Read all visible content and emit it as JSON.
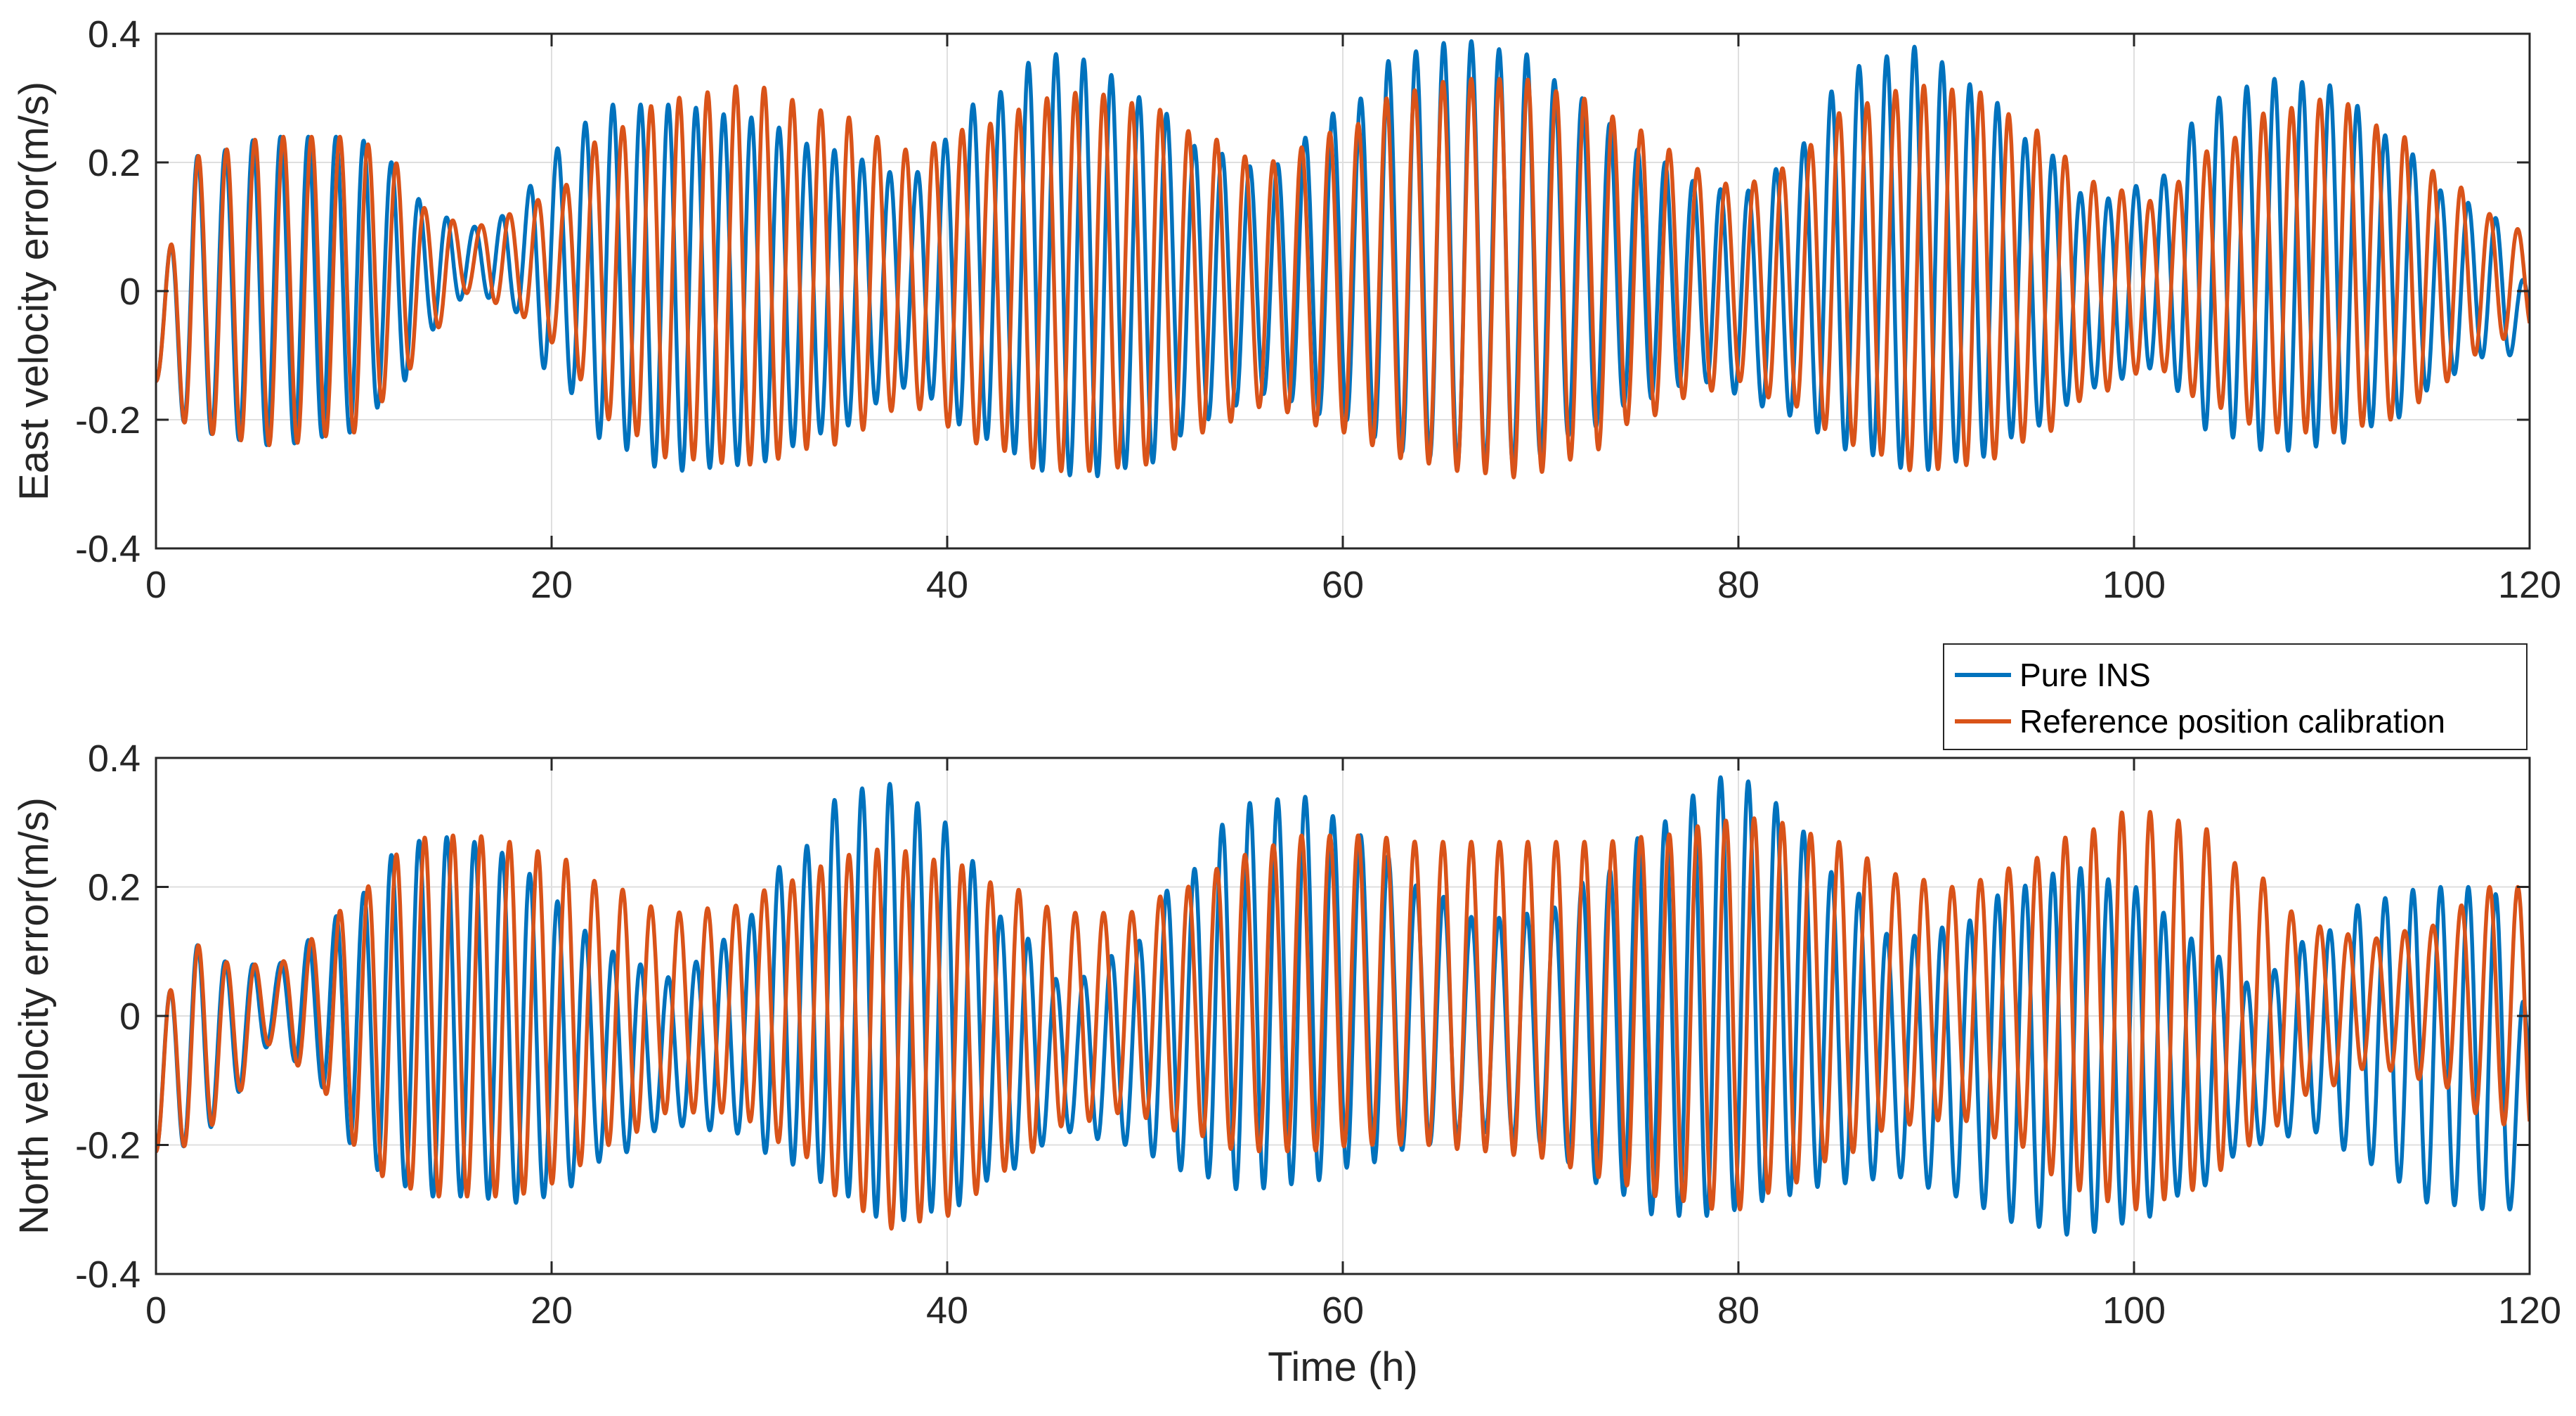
{
  "colors": {
    "pure_ins": "#0072BD",
    "reference": "#D95319",
    "grid": "#DFDFDF",
    "axis": "#262626"
  },
  "chart_data": [
    {
      "type": "line",
      "title": "",
      "xlabel": "",
      "ylabel": "East velocity error(m/s)",
      "xlim": [
        0,
        120
      ],
      "ylim": [
        -0.4,
        0.4
      ],
      "xticks": [
        0,
        20,
        40,
        60,
        80,
        100,
        120
      ],
      "xtick_labels": [
        "0",
        "20",
        "40",
        "60",
        "80",
        "100",
        "120"
      ],
      "yticks": [
        -0.4,
        -0.2,
        0,
        0.2,
        0.4
      ],
      "ytick_labels": [
        "-0.4",
        "-0.2",
        "0",
        "0.2",
        "0.4"
      ],
      "grid": true,
      "series": [
        {
          "name": "Pure INS",
          "color_key": "pure_ins",
          "oscillation_period_h": 1.4,
          "envelope": {
            "x": [
              0,
              2,
              6,
              10,
              12,
              14,
              16,
              18,
              20,
              23,
              26,
              30,
              34,
              38,
              42,
              45,
              47,
              50,
              53,
              56,
              60,
              63,
              66,
              69,
              72,
              75,
              78,
              80,
              82,
              86,
              89,
              92,
              95,
              98,
              101,
              104,
              107,
              110,
              113,
              116,
              118,
              120
            ],
            "max": [
              0.01,
              0.21,
              0.24,
              0.24,
              0.2,
              0.12,
              0.1,
              0.12,
              0.22,
              0.29,
              0.29,
              0.27,
              0.22,
              0.18,
              0.3,
              0.37,
              0.36,
              0.3,
              0.22,
              0.19,
              0.28,
              0.37,
              0.39,
              0.37,
              0.3,
              0.22,
              0.17,
              0.15,
              0.19,
              0.35,
              0.38,
              0.32,
              0.23,
              0.14,
              0.17,
              0.3,
              0.33,
              0.32,
              0.24,
              0.15,
              0.12,
              0.01
            ],
            "min": [
              -0.14,
              -0.22,
              -0.24,
              -0.22,
              -0.16,
              -0.06,
              0.0,
              -0.03,
              -0.13,
              -0.24,
              -0.28,
              -0.27,
              -0.22,
              -0.15,
              -0.23,
              -0.28,
              -0.29,
              -0.27,
              -0.2,
              -0.16,
              -0.2,
              -0.25,
              -0.27,
              -0.27,
              -0.22,
              -0.17,
              -0.14,
              -0.16,
              -0.19,
              -0.25,
              -0.28,
              -0.26,
              -0.21,
              -0.15,
              -0.12,
              -0.22,
              -0.25,
              -0.24,
              -0.2,
              -0.13,
              -0.1,
              -0.1
            ]
          }
        },
        {
          "name": "Reference position calibration",
          "color_key": "reference",
          "oscillation_period_h": 1.43,
          "envelope": {
            "x": [
              0,
              2,
              6,
              10,
              12,
              14,
              16,
              18,
              20,
              23,
              26,
              30,
              34,
              38,
              42,
              45,
              47,
              50,
              53,
              56,
              60,
              63,
              66,
              69,
              72,
              75,
              78,
              80,
              82,
              86,
              89,
              92,
              95,
              98,
              101,
              104,
              107,
              110,
              113,
              116,
              118,
              120
            ],
            "max": [
              0.01,
              0.21,
              0.24,
              0.24,
              0.2,
              0.12,
              0.1,
              0.12,
              0.15,
              0.25,
              0.3,
              0.32,
              0.28,
              0.22,
              0.26,
              0.3,
              0.31,
              0.29,
              0.24,
              0.2,
              0.25,
              0.31,
              0.33,
              0.33,
              0.3,
              0.25,
              0.19,
              0.16,
              0.19,
              0.29,
              0.32,
              0.31,
              0.25,
              0.17,
              0.14,
              0.22,
              0.28,
              0.3,
              0.25,
              0.17,
              0.12,
              0.09
            ],
            "min": [
              -0.14,
              -0.22,
              -0.24,
              -0.22,
              -0.16,
              -0.06,
              0.0,
              -0.03,
              -0.08,
              -0.2,
              -0.26,
              -0.27,
              -0.24,
              -0.18,
              -0.24,
              -0.28,
              -0.28,
              -0.27,
              -0.22,
              -0.18,
              -0.22,
              -0.26,
              -0.28,
              -0.29,
              -0.26,
              -0.2,
              -0.16,
              -0.14,
              -0.17,
              -0.24,
              -0.28,
              -0.27,
              -0.23,
              -0.16,
              -0.12,
              -0.18,
              -0.22,
              -0.22,
              -0.2,
              -0.14,
              -0.08,
              -0.06
            ]
          }
        }
      ]
    },
    {
      "type": "line",
      "title": "",
      "xlabel": "Time (h)",
      "ylabel": "North velocity error(m/s)",
      "xlim": [
        0,
        120
      ],
      "ylim": [
        -0.4,
        0.4
      ],
      "xticks": [
        0,
        20,
        40,
        60,
        80,
        100,
        120
      ],
      "xtick_labels": [
        "0",
        "20",
        "40",
        "60",
        "80",
        "100",
        "120"
      ],
      "yticks": [
        -0.4,
        -0.2,
        0,
        0.2,
        0.4
      ],
      "ytick_labels": [
        "-0.4",
        "-0.2",
        "0",
        "0.2",
        "0.4"
      ],
      "grid": true,
      "legend": {
        "location": "top-right",
        "entries": [
          "Pure INS",
          "Reference position calibration"
        ]
      },
      "series": [
        {
          "name": "Pure INS",
          "color_key": "pure_ins",
          "oscillation_period_h": 1.4,
          "envelope": {
            "x": [
              0,
              2,
              4,
              6,
              8,
              10,
              12,
              14,
              16,
              18,
              20,
              23,
              26,
              29,
              32,
              35,
              37,
              40,
              43,
              46,
              49,
              52,
              55,
              58,
              61,
              64,
              67,
              70,
              73,
              76,
              79,
              80,
              82,
              85,
              88,
              91,
              94,
              97,
              100,
              103,
              106,
              109,
              112,
              115,
              118,
              120
            ],
            "max": [
              0.01,
              0.11,
              0.08,
              0.08,
              0.12,
              0.18,
              0.25,
              0.28,
              0.27,
              0.25,
              0.18,
              0.1,
              0.06,
              0.12,
              0.24,
              0.35,
              0.36,
              0.3,
              0.15,
              0.05,
              0.1,
              0.22,
              0.33,
              0.34,
              0.28,
              0.2,
              0.15,
              0.16,
              0.22,
              0.3,
              0.37,
              0.37,
              0.33,
              0.22,
              0.12,
              0.14,
              0.2,
              0.23,
              0.2,
              0.12,
              0.05,
              0.12,
              0.18,
              0.2,
              0.2,
              0.01
            ],
            "min": [
              -0.21,
              -0.2,
              -0.12,
              -0.04,
              -0.1,
              -0.2,
              -0.26,
              -0.28,
              -0.28,
              -0.29,
              -0.28,
              -0.22,
              -0.17,
              -0.18,
              -0.23,
              -0.28,
              -0.32,
              -0.3,
              -0.24,
              -0.18,
              -0.2,
              -0.24,
              -0.27,
              -0.26,
              -0.23,
              -0.2,
              -0.18,
              -0.2,
              -0.26,
              -0.31,
              -0.31,
              -0.3,
              -0.28,
              -0.26,
              -0.25,
              -0.28,
              -0.32,
              -0.34,
              -0.32,
              -0.27,
              -0.2,
              -0.18,
              -0.23,
              -0.29,
              -0.3,
              -0.3
            ]
          }
        },
        {
          "name": "Reference position calibration",
          "color_key": "reference",
          "oscillation_period_h": 1.43,
          "envelope": {
            "x": [
              0,
              2,
              4,
              6,
              8,
              10,
              12,
              14,
              16,
              18,
              20,
              23,
              26,
              29,
              32,
              35,
              37,
              40,
              43,
              46,
              49,
              52,
              55,
              58,
              61,
              64,
              67,
              70,
              73,
              76,
              79,
              80,
              82,
              85,
              88,
              91,
              94,
              97,
              100,
              103,
              106,
              109,
              112,
              115,
              118,
              120
            ],
            "max": [
              0.01,
              0.11,
              0.08,
              0.08,
              0.12,
              0.18,
              0.25,
              0.28,
              0.28,
              0.27,
              0.25,
              0.2,
              0.16,
              0.17,
              0.21,
              0.25,
              0.26,
              0.24,
              0.2,
              0.16,
              0.16,
              0.2,
              0.25,
              0.28,
              0.28,
              0.27,
              0.27,
              0.27,
              0.27,
              0.28,
              0.3,
              0.31,
              0.3,
              0.27,
              0.22,
              0.2,
              0.23,
              0.28,
              0.32,
              0.3,
              0.22,
              0.14,
              0.12,
              0.14,
              0.2,
              0.2
            ],
            "min": [
              -0.21,
              -0.2,
              -0.12,
              -0.04,
              -0.1,
              -0.2,
              -0.26,
              -0.28,
              -0.28,
              -0.28,
              -0.26,
              -0.2,
              -0.15,
              -0.15,
              -0.2,
              -0.29,
              -0.33,
              -0.31,
              -0.24,
              -0.17,
              -0.15,
              -0.18,
              -0.21,
              -0.21,
              -0.2,
              -0.2,
              -0.21,
              -0.22,
              -0.25,
              -0.28,
              -0.3,
              -0.3,
              -0.27,
              -0.22,
              -0.17,
              -0.16,
              -0.2,
              -0.27,
              -0.3,
              -0.27,
              -0.2,
              -0.12,
              -0.08,
              -0.1,
              -0.16,
              -0.19
            ]
          }
        }
      ]
    }
  ]
}
